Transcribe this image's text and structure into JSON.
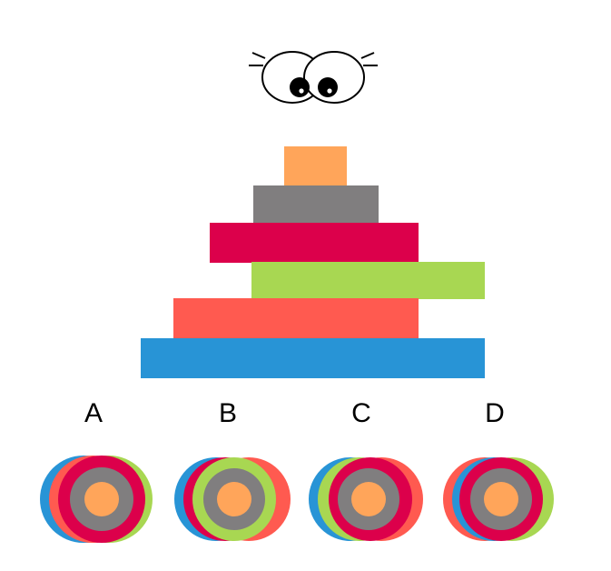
{
  "colors": {
    "orange": "#FFA55A",
    "gray": "#807E7F",
    "crimson": "#DC004B",
    "green": "#A8D752",
    "coral": "#FF5A50",
    "blue": "#2894D6"
  },
  "mascot": {
    "icon": "cartoon-eyes-icon"
  },
  "pyramid": {
    "layers_top_to_bottom": [
      "orange",
      "gray",
      "crimson",
      "green",
      "coral",
      "blue"
    ]
  },
  "options": [
    {
      "label": "A",
      "rings_outer_to_inner": [
        "blue",
        "coral",
        "green",
        "crimson",
        "gray",
        "orange"
      ]
    },
    {
      "label": "B",
      "rings_outer_to_inner": [
        "blue",
        "coral",
        "crimson",
        "green",
        "gray",
        "orange"
      ]
    },
    {
      "label": "C",
      "rings_outer_to_inner": [
        "blue",
        "green",
        "coral",
        "crimson",
        "gray",
        "orange"
      ]
    },
    {
      "label": "D",
      "rings_outer_to_inner": [
        "coral",
        "blue",
        "green",
        "crimson",
        "gray",
        "orange"
      ]
    }
  ]
}
